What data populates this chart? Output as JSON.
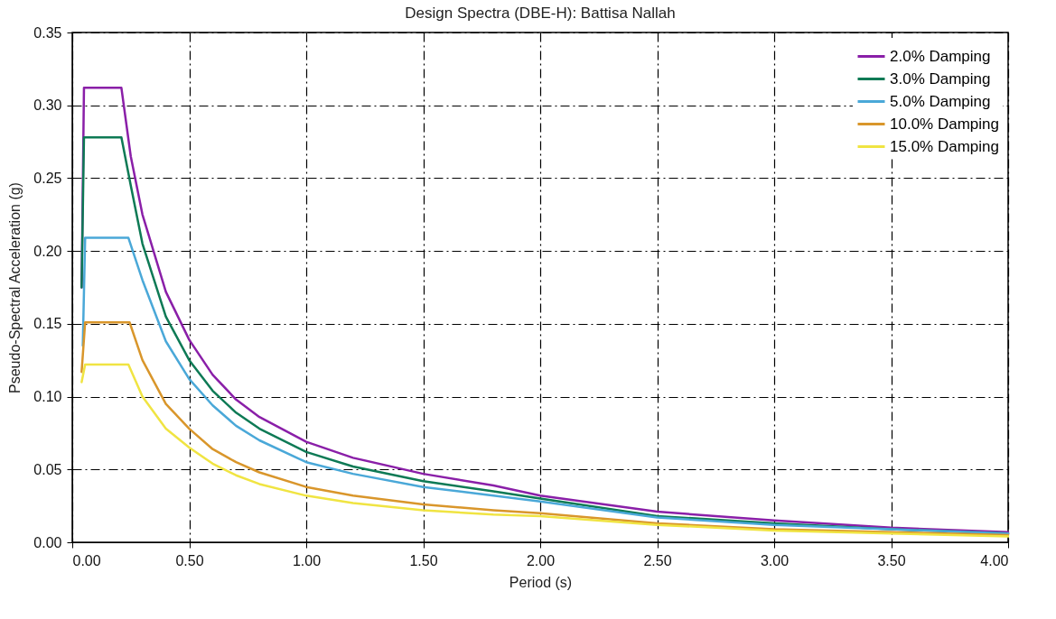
{
  "chart_data": {
    "type": "line",
    "title": "Design Spectra (DBE-H): Battisa Nallah",
    "xlabel": "Period (s)",
    "ylabel": "Pseudo-Spectral Acceleration (g)",
    "xlim": [
      0,
      4
    ],
    "ylim": [
      0,
      0.35
    ],
    "xticks": [
      {
        "value": 0,
        "label": "0.00"
      },
      {
        "value": 0.5,
        "label": "0.50"
      },
      {
        "value": 1,
        "label": "1.00"
      },
      {
        "value": 1.5,
        "label": "1.50"
      },
      {
        "value": 2,
        "label": "2.00"
      },
      {
        "value": 2.5,
        "label": "2.50"
      },
      {
        "value": 3,
        "label": "3.00"
      },
      {
        "value": 3.5,
        "label": "3.50"
      },
      {
        "value": 4,
        "label": "4.00"
      }
    ],
    "yticks": [
      {
        "value": 0,
        "label": "0.00"
      },
      {
        "value": 0.05,
        "label": "0.05"
      },
      {
        "value": 0.1,
        "label": "0.10"
      },
      {
        "value": 0.15,
        "label": "0.15"
      },
      {
        "value": 0.2,
        "label": "0.20"
      },
      {
        "value": 0.25,
        "label": "0.25"
      },
      {
        "value": 0.3,
        "label": "0.30"
      },
      {
        "value": 0.35,
        "label": "0.35"
      }
    ],
    "grid": true,
    "legend": "top right",
    "line_style": "solid",
    "series": [
      {
        "name": "2.0% Damping",
        "color": "#8a1fa8",
        "x": [
          0.04,
          0.05,
          0.21,
          0.25,
          0.3,
          0.4,
          0.5,
          0.6,
          0.7,
          0.8,
          1.0,
          1.2,
          1.5,
          1.8,
          2.0,
          2.5,
          3.0,
          3.5,
          4.0
        ],
        "values": [
          0.175,
          0.312,
          0.312,
          0.265,
          0.225,
          0.172,
          0.139,
          0.115,
          0.098,
          0.086,
          0.069,
          0.058,
          0.047,
          0.039,
          0.032,
          0.021,
          0.015,
          0.01,
          0.007
        ]
      },
      {
        "name": "3.0% Damping",
        "color": "#0e7a55",
        "x": [
          0.04,
          0.05,
          0.21,
          0.25,
          0.3,
          0.4,
          0.5,
          0.6,
          0.7,
          0.8,
          1.0,
          1.2,
          1.5,
          1.8,
          2.0,
          2.5,
          3.0,
          3.5,
          4.0
        ],
        "values": [
          0.175,
          0.278,
          0.278,
          0.245,
          0.205,
          0.155,
          0.125,
          0.104,
          0.089,
          0.078,
          0.062,
          0.052,
          0.042,
          0.035,
          0.03,
          0.018,
          0.013,
          0.009,
          0.006
        ]
      },
      {
        "name": "5.0% Damping",
        "color": "#4aa8d8",
        "x": [
          0.045,
          0.055,
          0.24,
          0.3,
          0.4,
          0.5,
          0.6,
          0.7,
          0.8,
          1.0,
          1.2,
          1.5,
          1.8,
          2.0,
          2.5,
          3.0,
          3.5,
          4.0
        ],
        "values": [
          0.135,
          0.209,
          0.209,
          0.18,
          0.138,
          0.112,
          0.094,
          0.08,
          0.07,
          0.055,
          0.047,
          0.038,
          0.032,
          0.028,
          0.017,
          0.012,
          0.009,
          0.006
        ]
      },
      {
        "name": "10.0% Damping",
        "color": "#d9962b",
        "x": [
          0.04,
          0.055,
          0.245,
          0.3,
          0.4,
          0.5,
          0.6,
          0.7,
          0.8,
          1.0,
          1.2,
          1.5,
          1.8,
          2.0,
          2.5,
          3.0,
          3.5,
          4.0
        ],
        "values": [
          0.117,
          0.151,
          0.151,
          0.125,
          0.095,
          0.078,
          0.064,
          0.055,
          0.048,
          0.038,
          0.032,
          0.026,
          0.022,
          0.02,
          0.013,
          0.009,
          0.007,
          0.005
        ]
      },
      {
        "name": "15.0% Damping",
        "color": "#f0e442",
        "x": [
          0.04,
          0.055,
          0.24,
          0.3,
          0.4,
          0.5,
          0.6,
          0.7,
          0.8,
          1.0,
          1.2,
          1.5,
          1.8,
          2.0,
          2.5,
          3.0,
          3.5,
          4.0
        ],
        "values": [
          0.11,
          0.122,
          0.122,
          0.1,
          0.078,
          0.065,
          0.054,
          0.046,
          0.04,
          0.032,
          0.027,
          0.022,
          0.019,
          0.018,
          0.012,
          0.008,
          0.006,
          0.004
        ]
      }
    ]
  }
}
